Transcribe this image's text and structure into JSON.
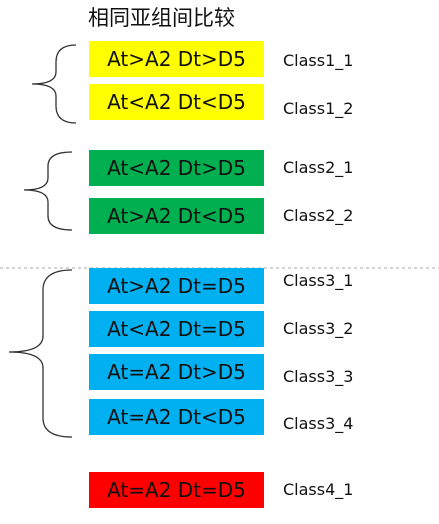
{
  "title": "相同亚组间比较",
  "colors": {
    "yellow": "#ffff00",
    "green": "#00b050",
    "blue": "#00b0f0",
    "red": "#ff0000",
    "bracket": "#333333",
    "divider": "#aaaaaa"
  },
  "groups": [
    {
      "items": [
        {
          "condition": "At>A2 Dt>D5",
          "class": "Class1_1"
        },
        {
          "condition": "At<A2 Dt<D5",
          "class": "Class1_2"
        }
      ]
    },
    {
      "items": [
        {
          "condition": "At<A2 Dt>D5",
          "class": "Class2_1"
        },
        {
          "condition": "At>A2 Dt<D5",
          "class": "Class2_2"
        }
      ]
    },
    {
      "items": [
        {
          "condition": "At>A2 Dt=D5",
          "class": "Class3_1"
        },
        {
          "condition": "At<A2 Dt=D5",
          "class": "Class3_2"
        },
        {
          "condition": "At=A2 Dt>D5",
          "class": "Class3_3"
        },
        {
          "condition": "At=A2 Dt<D5",
          "class": "Class3_4"
        }
      ]
    },
    {
      "items": [
        {
          "condition": "At=A2 Dt=D5",
          "class": "Class4_1"
        }
      ]
    }
  ]
}
